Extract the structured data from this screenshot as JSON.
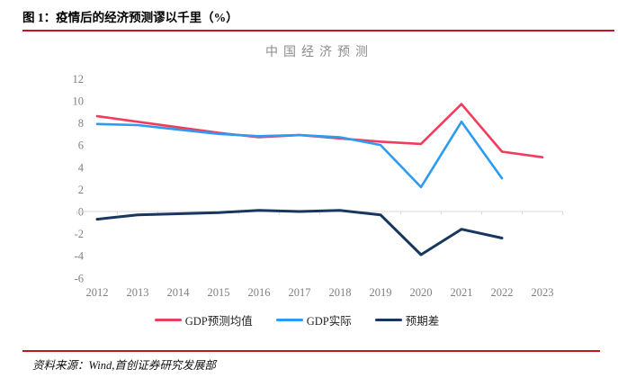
{
  "page": {
    "header_title": "图 1：疫情后的经济预测谬以千里（%）",
    "source_note": "资料来源：Wind,首创证券研究发展部"
  },
  "colors": {
    "forecast_red": "#f03d5d",
    "actual_blue": "#2b9cf2",
    "gap_navy": "#17375e",
    "rule_red": "#c5161d",
    "axis_line_gray": "#d9d9d9",
    "tick_label_gray": "#808080",
    "title_gray": "#8c8c8c"
  },
  "chart_data": {
    "type": "line",
    "title": "中国经济预测",
    "categories": [
      "2012",
      "2013",
      "2014",
      "2015",
      "2016",
      "2017",
      "2018",
      "2019",
      "2020",
      "2021",
      "2022",
      "2023"
    ],
    "series": [
      {
        "name": "GDP预测均值",
        "color": "#f03d5d",
        "values": [
          8.6,
          8.1,
          7.6,
          7.1,
          6.7,
          6.9,
          6.6,
          6.3,
          6.1,
          9.7,
          5.4,
          4.9
        ]
      },
      {
        "name": "GDP实际",
        "color": "#2b9cf2",
        "values": [
          7.9,
          7.8,
          7.4,
          7.0,
          6.8,
          6.9,
          6.7,
          6.0,
          2.2,
          8.1,
          3.0,
          null
        ]
      },
      {
        "name": "预期差",
        "color": "#17375e",
        "values": [
          -0.7,
          -0.3,
          -0.2,
          -0.1,
          0.1,
          0.0,
          0.1,
          -0.3,
          -3.9,
          -1.6,
          -2.4,
          null
        ]
      }
    ],
    "ylim": [
      -6,
      12
    ],
    "ytick_step": 2,
    "grid": false,
    "legend_position": "bottom"
  }
}
